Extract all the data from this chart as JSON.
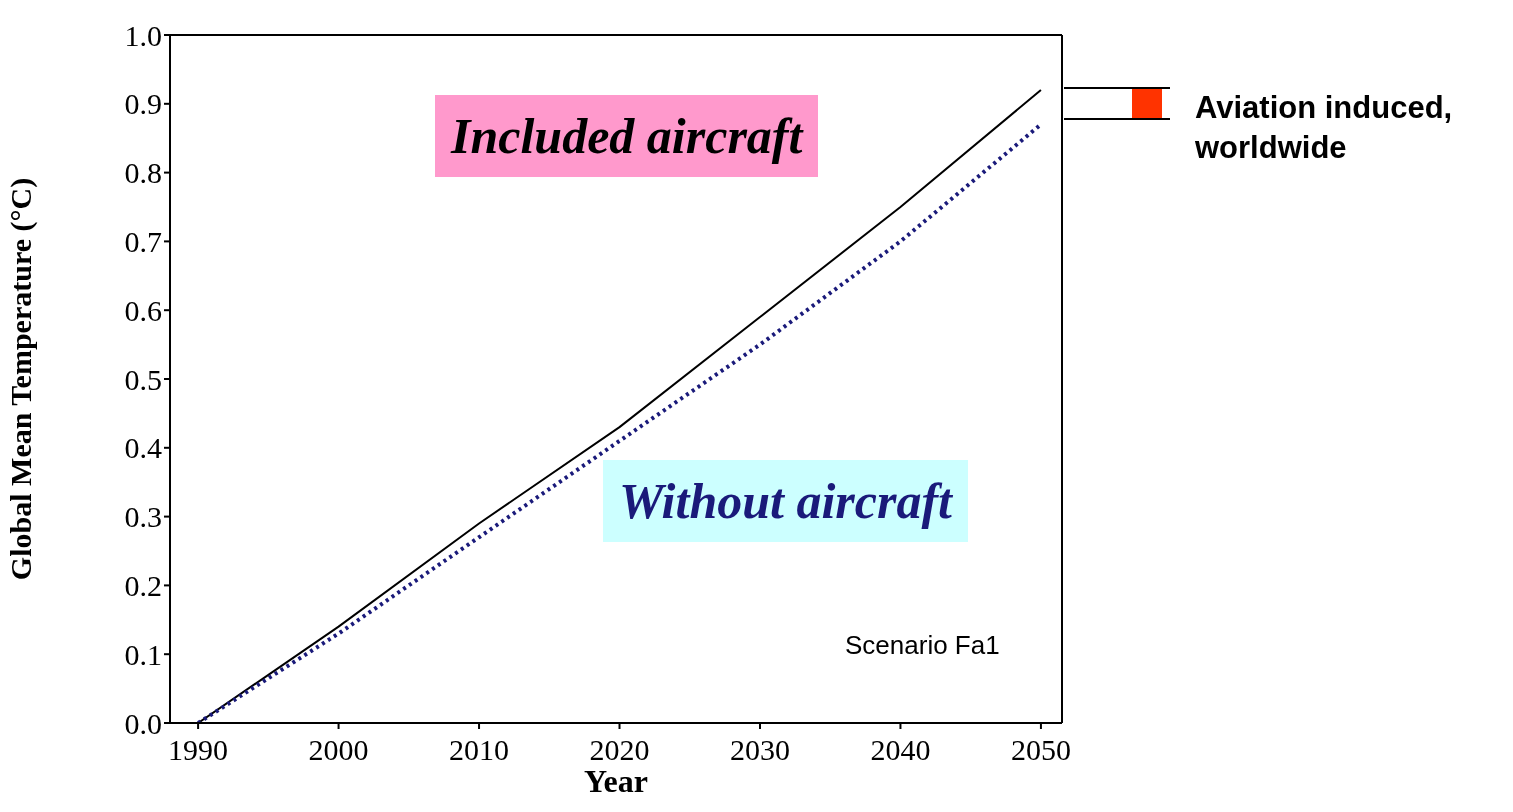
{
  "chart_data": {
    "type": "line",
    "xlabel": "Year",
    "ylabel": "Global Mean Temperature (°C)",
    "x": [
      1990,
      2000,
      2010,
      2020,
      2030,
      2040,
      2050
    ],
    "series": [
      {
        "name": "Included aircraft",
        "color": "#000000",
        "line_style": "solid",
        "values": [
          0.0,
          0.14,
          0.29,
          0.43,
          0.59,
          0.75,
          0.92
        ]
      },
      {
        "name": "Without aircraft",
        "color": "#1a1a7a",
        "line_style": "dotted",
        "values": [
          0.0,
          0.13,
          0.27,
          0.41,
          0.55,
          0.7,
          0.87
        ]
      }
    ],
    "xlim": [
      1988,
      2051.5
    ],
    "xticks": [
      1990,
      2000,
      2010,
      2020,
      2030,
      2040,
      2050
    ],
    "ylim": [
      0,
      1
    ],
    "yticks": [
      {
        "value": 0,
        "label": "0.0"
      },
      {
        "value": 0.1,
        "label": "0.1"
      },
      {
        "value": 0.2,
        "label": "0.2"
      },
      {
        "value": 0.3,
        "label": "0.3"
      },
      {
        "value": 0.4,
        "label": "0.4"
      },
      {
        "value": 0.5,
        "label": "0.5"
      },
      {
        "value": 0.6,
        "label": "0.6"
      },
      {
        "value": 0.7,
        "label": "0.7"
      },
      {
        "value": 0.8,
        "label": "0.8"
      },
      {
        "value": 0.9,
        "label": "0.9"
      },
      {
        "value": 1,
        "label": "1.0"
      }
    ],
    "marker": "none",
    "annotations": [
      "Scenario Fa1",
      "Aviation induced, worldwide"
    ]
  }
}
